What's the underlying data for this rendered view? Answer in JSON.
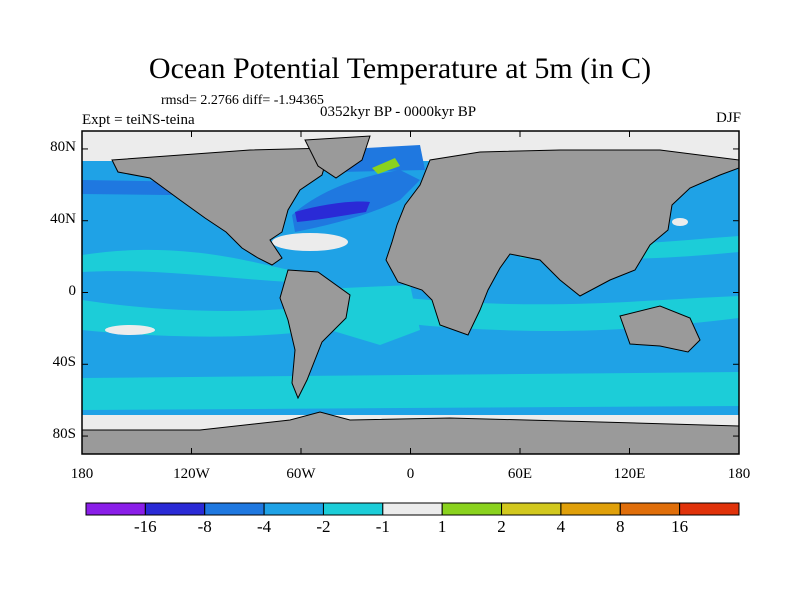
{
  "header": {
    "title": "Ocean Potential Temperature at 5m (in C)",
    "stats": "rmsd= 2.2766 diff= -1.94365",
    "experiment": "Expt = teiNS-teina",
    "period": "0352kyr BP - 0000kyr BP",
    "season": "DJF"
  },
  "chart_data": {
    "type": "heatmap",
    "title": "Ocean Potential Temperature at 5m (in C)",
    "projection": "cylindrical equidistant",
    "xlim": [
      -180,
      180
    ],
    "ylim": [
      -90,
      90
    ],
    "x_ticks": [
      {
        "value": -180,
        "label": "180"
      },
      {
        "value": -120,
        "label": "120W"
      },
      {
        "value": -60,
        "label": "60W"
      },
      {
        "value": 0,
        "label": "0"
      },
      {
        "value": 60,
        "label": "60E"
      },
      {
        "value": 120,
        "label": "120E"
      },
      {
        "value": 180,
        "label": "180"
      }
    ],
    "y_ticks": [
      {
        "value": 80,
        "label": "80N"
      },
      {
        "value": 40,
        "label": "40N"
      },
      {
        "value": 0,
        "label": "0"
      },
      {
        "value": -40,
        "label": "40S"
      },
      {
        "value": -80,
        "label": "80S"
      }
    ],
    "colorbar": {
      "colors": [
        "#8a1ee8",
        "#2a2ad6",
        "#1f78e0",
        "#1fa2e6",
        "#1ccdd8",
        "#ececec",
        "#8ad21e",
        "#d2c81e",
        "#e0a00a",
        "#e06e0a",
        "#e0320a"
      ],
      "labels": [
        {
          "boundary": 1,
          "text": "-16"
        },
        {
          "boundary": 2,
          "text": "-8"
        },
        {
          "boundary": 3,
          "text": "-4"
        },
        {
          "boundary": 4,
          "text": "-2"
        },
        {
          "boundary": 5,
          "text": "-1"
        },
        {
          "boundary": 6,
          "text": "1"
        },
        {
          "boundary": 7,
          "text": "2"
        },
        {
          "boundary": 8,
          "text": "4"
        },
        {
          "boundary": 9,
          "text": "8"
        },
        {
          "boundary": 10,
          "text": "16"
        }
      ]
    },
    "colors": {
      "land": "#9a9a9a",
      "base_ocean": "#1fa2e6",
      "band_ocean": "#1ccdd8",
      "near_zero": "#ececec",
      "deep_cooling": "#1f78e0",
      "strong_cooling": "#2a2ad6",
      "warming": "#8ad21e"
    }
  }
}
